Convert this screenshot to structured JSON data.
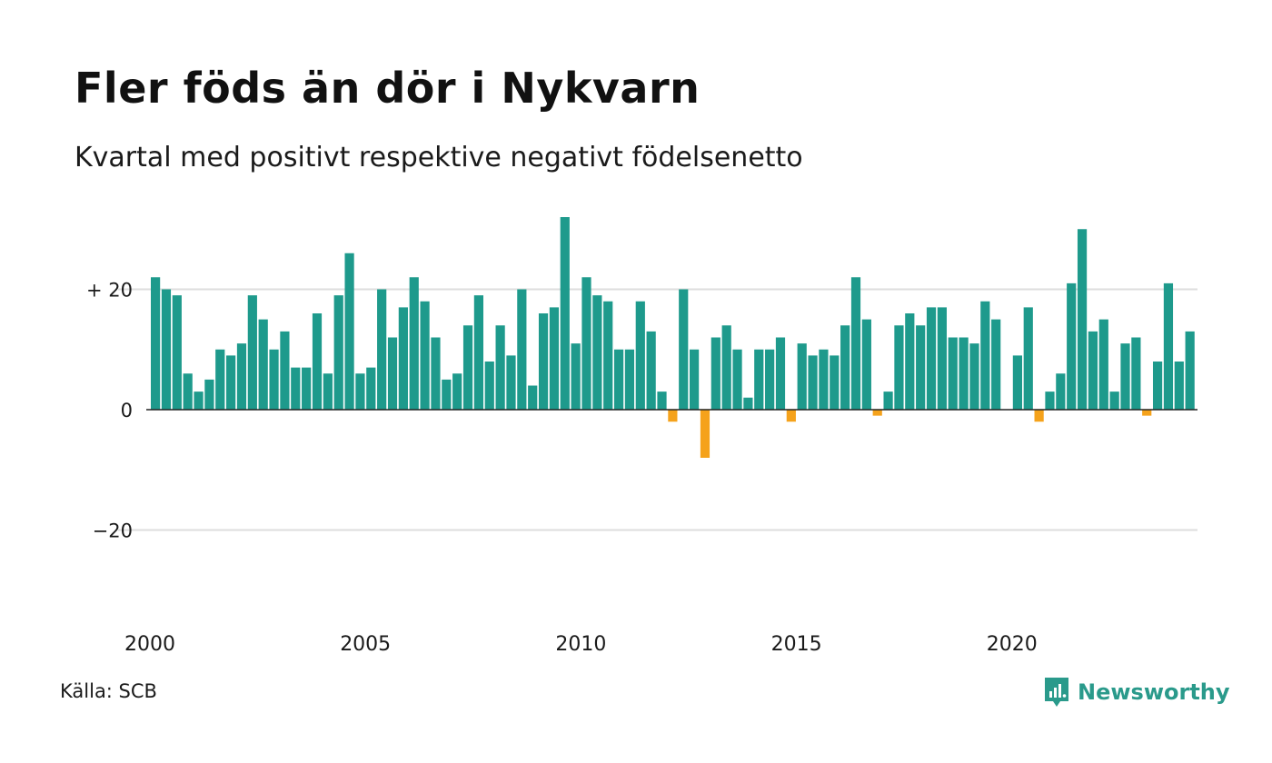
{
  "header": {
    "title": "Fler föds än dör i Nykvarn",
    "subtitle": "Kvartal med positivt respektive negativt födelsenetto"
  },
  "footer": {
    "source": "Källa: SCB",
    "brand_name": "Newsworthy",
    "brand_icon": "newsworthy-logo-icon"
  },
  "colors": {
    "positive": "#1e9a8c",
    "negative": "#f5a21b",
    "grid": "#dddddd",
    "zero_line": "#222222",
    "brand": "#2a9a8b"
  },
  "chart_data": {
    "type": "bar",
    "x_ticks": [
      {
        "label": "2000",
        "index": 0
      },
      {
        "label": "2005",
        "index": 20
      },
      {
        "label": "2010",
        "index": 40
      },
      {
        "label": "2015",
        "index": 60
      },
      {
        "label": "2020",
        "index": 80
      }
    ],
    "y_ticks": [
      {
        "label": "+ 20",
        "value": 20
      },
      {
        "label": "0",
        "value": 0
      },
      {
        "label": "−20",
        "value": -20
      }
    ],
    "ylim": [
      -34,
      35
    ],
    "grid": true,
    "period_start": "2000 Q1",
    "frequency": "quarterly",
    "values": [
      22,
      20,
      19,
      6,
      3,
      5,
      10,
      9,
      11,
      19,
      15,
      10,
      13,
      7,
      7,
      16,
      6,
      19,
      26,
      6,
      7,
      20,
      12,
      17,
      22,
      18,
      12,
      5,
      6,
      14,
      19,
      8,
      14,
      9,
      20,
      4,
      16,
      17,
      32,
      11,
      22,
      19,
      18,
      10,
      10,
      18,
      13,
      3,
      -2,
      20,
      10,
      -8,
      12,
      14,
      10,
      2,
      10,
      10,
      12,
      -2,
      11,
      9,
      10,
      9,
      14,
      22,
      15,
      -1,
      3,
      14,
      16,
      14,
      17,
      17,
      12,
      12,
      11,
      18,
      15,
      0,
      9,
      17,
      -2,
      3,
      6,
      21,
      30,
      13,
      15,
      3,
      11,
      12,
      -1,
      8,
      21,
      8,
      13
    ]
  }
}
